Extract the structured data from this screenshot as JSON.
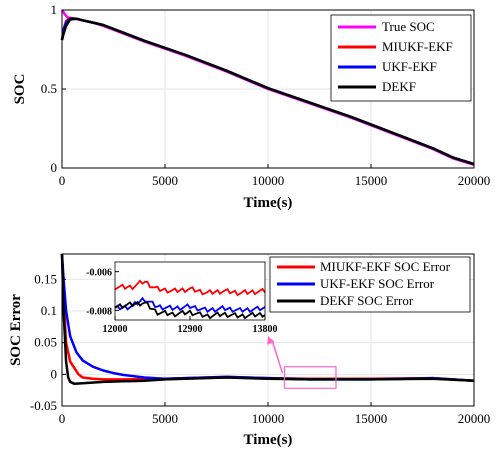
{
  "chart_data": [
    {
      "type": "line",
      "title": "",
      "xlabel": "Time(s)",
      "ylabel": "SOC",
      "xlim": [
        0,
        20000
      ],
      "ylim": [
        0,
        1
      ],
      "xticks": [
        "0",
        "5000",
        "10000",
        "15000",
        "20000"
      ],
      "xtick_values": [
        0,
        5000,
        10000,
        15000,
        20000
      ],
      "yticks": [
        "0",
        "0.5",
        "1"
      ],
      "ytick_values": [
        0,
        0.5,
        1
      ],
      "legend_position": "top-right",
      "series": [
        {
          "name": "True SOC",
          "color": "#ff00ff",
          "x": [
            0,
            150,
            300,
            600,
            1000,
            1500,
            2000,
            4000,
            6000,
            8000,
            10000,
            12000,
            14000,
            16000,
            18000,
            19000,
            20000
          ],
          "values": [
            1.0,
            0.97,
            0.95,
            0.945,
            0.935,
            0.92,
            0.9,
            0.8,
            0.71,
            0.61,
            0.5,
            0.41,
            0.32,
            0.22,
            0.12,
            0.06,
            0.02
          ]
        },
        {
          "name": "MIUKF-EKF",
          "color": "#ff0000",
          "x": [
            0,
            80,
            200,
            400,
            700,
            1000,
            1500,
            2000,
            4000,
            6000,
            8000,
            10000,
            12000,
            14000,
            16000,
            18000,
            19000,
            20000
          ],
          "values": [
            0.81,
            0.88,
            0.93,
            0.95,
            0.945,
            0.935,
            0.92,
            0.905,
            0.805,
            0.715,
            0.615,
            0.505,
            0.415,
            0.325,
            0.225,
            0.125,
            0.065,
            0.025
          ]
        },
        {
          "name": "UKF-EKF",
          "color": "#0000ff",
          "x": [
            0,
            80,
            200,
            400,
            700,
            1000,
            1500,
            2000,
            4000,
            6000,
            8000,
            10000,
            12000,
            14000,
            16000,
            18000,
            19000,
            20000
          ],
          "values": [
            0.81,
            0.87,
            0.92,
            0.945,
            0.945,
            0.935,
            0.92,
            0.905,
            0.805,
            0.715,
            0.615,
            0.505,
            0.415,
            0.325,
            0.225,
            0.125,
            0.065,
            0.025
          ]
        },
        {
          "name": "DEKF",
          "color": "#000000",
          "x": [
            0,
            80,
            200,
            400,
            700,
            1000,
            1500,
            2000,
            4000,
            6000,
            8000,
            10000,
            12000,
            14000,
            16000,
            18000,
            19000,
            20000
          ],
          "values": [
            0.81,
            0.85,
            0.9,
            0.94,
            0.945,
            0.935,
            0.92,
            0.905,
            0.805,
            0.715,
            0.615,
            0.505,
            0.415,
            0.325,
            0.225,
            0.125,
            0.065,
            0.025
          ]
        }
      ]
    },
    {
      "type": "line",
      "title": "",
      "xlabel": "Time(s)",
      "ylabel": "SOC Error",
      "xlim": [
        0,
        20000
      ],
      "ylim": [
        -0.05,
        0.19
      ],
      "xticks": [
        "0",
        "5000",
        "10000",
        "15000",
        "20000"
      ],
      "xtick_values": [
        0,
        5000,
        10000,
        15000,
        20000
      ],
      "yticks": [
        "-0.05",
        "0",
        "0.05",
        "0.1",
        "0.15"
      ],
      "ytick_values": [
        -0.05,
        0,
        0.05,
        0.1,
        0.15
      ],
      "legend_position": "top-right",
      "series": [
        {
          "name": "MIUKF-EKF SOC Error",
          "color": "#ff0000",
          "x": [
            0,
            80,
            200,
            400,
            600,
            800,
            1000,
            1500,
            2000,
            3000,
            5000,
            8000,
            10000,
            12000,
            15000,
            18000,
            20000
          ],
          "values": [
            0.19,
            0.12,
            0.05,
            0.02,
            0.01,
            0.0,
            -0.005,
            -0.007,
            -0.008,
            -0.008,
            -0.007,
            -0.004,
            -0.006,
            -0.007,
            -0.007,
            -0.006,
            -0.01
          ]
        },
        {
          "name": "UKF-EKF SOC Error",
          "color": "#0000ff",
          "x": [
            0,
            80,
            200,
            400,
            700,
            1000,
            1500,
            2000,
            2500,
            3000,
            4000,
            5000,
            8000,
            10000,
            12000,
            15000,
            18000,
            20000
          ],
          "values": [
            0.19,
            0.15,
            0.1,
            0.06,
            0.035,
            0.022,
            0.012,
            0.006,
            0.002,
            -0.001,
            -0.005,
            -0.007,
            -0.004,
            -0.006,
            -0.008,
            -0.008,
            -0.006,
            -0.01
          ]
        },
        {
          "name": "DEKF SOC Error",
          "color": "#000000",
          "x": [
            0,
            80,
            200,
            300,
            400,
            600,
            1000,
            2000,
            3000,
            4000,
            5000,
            8000,
            10000,
            12000,
            15000,
            18000,
            20000
          ],
          "values": [
            0.19,
            0.1,
            0.02,
            -0.005,
            -0.012,
            -0.015,
            -0.014,
            -0.012,
            -0.011,
            -0.01,
            -0.008,
            -0.005,
            -0.007,
            -0.008,
            -0.008,
            -0.007,
            -0.01
          ]
        }
      ],
      "inset": {
        "xlim": [
          12000,
          13800
        ],
        "ylim": [
          -0.0085,
          -0.0055
        ],
        "xticks": [
          "12000",
          "12900",
          "13800"
        ],
        "xtick_values": [
          12000,
          12900,
          13800
        ],
        "yticks": [
          "-0.006",
          "-0.008"
        ],
        "ytick_values": [
          -0.006,
          -0.008
        ],
        "series": [
          {
            "color": "#ff0000",
            "x": [
              12000,
              12200,
              12350,
              12500,
              12700,
              12900,
              13100,
              13300,
              13500,
              13800
            ],
            "values": [
              -0.0068,
              -0.0068,
              -0.0065,
              -0.0069,
              -0.007,
              -0.0069,
              -0.0071,
              -0.007,
              -0.0071,
              -0.007
            ]
          },
          {
            "color": "#0000ff",
            "x": [
              12000,
              12200,
              12350,
              12500,
              12700,
              12900,
              13100,
              13300,
              13500,
              13800
            ],
            "values": [
              -0.0079,
              -0.0078,
              -0.0074,
              -0.0078,
              -0.0079,
              -0.0078,
              -0.008,
              -0.0079,
              -0.008,
              -0.0079
            ]
          },
          {
            "color": "#000000",
            "x": [
              12000,
              12200,
              12350,
              12500,
              12700,
              12900,
              13100,
              13300,
              13500,
              13800
            ],
            "values": [
              -0.0078,
              -0.0077,
              -0.0076,
              -0.0081,
              -0.0082,
              -0.0081,
              -0.0083,
              -0.0082,
              -0.0083,
              -0.0082
            ]
          }
        ]
      },
      "zoom_region": {
        "xlim": [
          10800,
          13300
        ],
        "ylim": [
          -0.022,
          0.012
        ],
        "color": "#ff66cc"
      }
    }
  ]
}
